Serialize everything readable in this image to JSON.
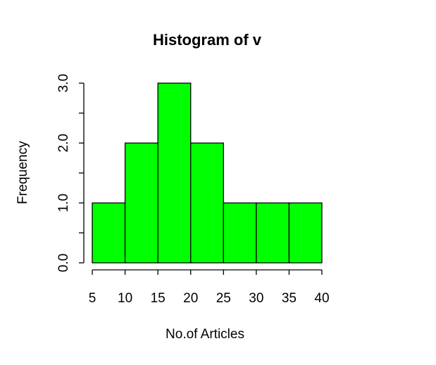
{
  "chart_data": {
    "type": "bar",
    "title": "Histogram of v",
    "xlabel": "No.of Articles",
    "ylabel": "Frequency",
    "bins": [
      {
        "from": 5,
        "to": 10,
        "count": 1
      },
      {
        "from": 10,
        "to": 15,
        "count": 2
      },
      {
        "from": 15,
        "to": 20,
        "count": 3
      },
      {
        "from": 20,
        "to": 25,
        "count": 2
      },
      {
        "from": 25,
        "to": 30,
        "count": 1
      },
      {
        "from": 30,
        "to": 35,
        "count": 1
      },
      {
        "from": 35,
        "to": 40,
        "count": 1
      }
    ],
    "xlim": [
      5,
      40
    ],
    "ylim": [
      0,
      3
    ],
    "x_ticks": [
      "5",
      "10",
      "15",
      "20",
      "25",
      "30",
      "35",
      "40"
    ],
    "y_ticks": [
      "0.0",
      "1.0",
      "2.0",
      "3.0"
    ],
    "y_minor_ticks": [
      0.5,
      1.5,
      2.5
    ],
    "bar_color": "#00ff00",
    "grid": false,
    "legend": "none"
  }
}
